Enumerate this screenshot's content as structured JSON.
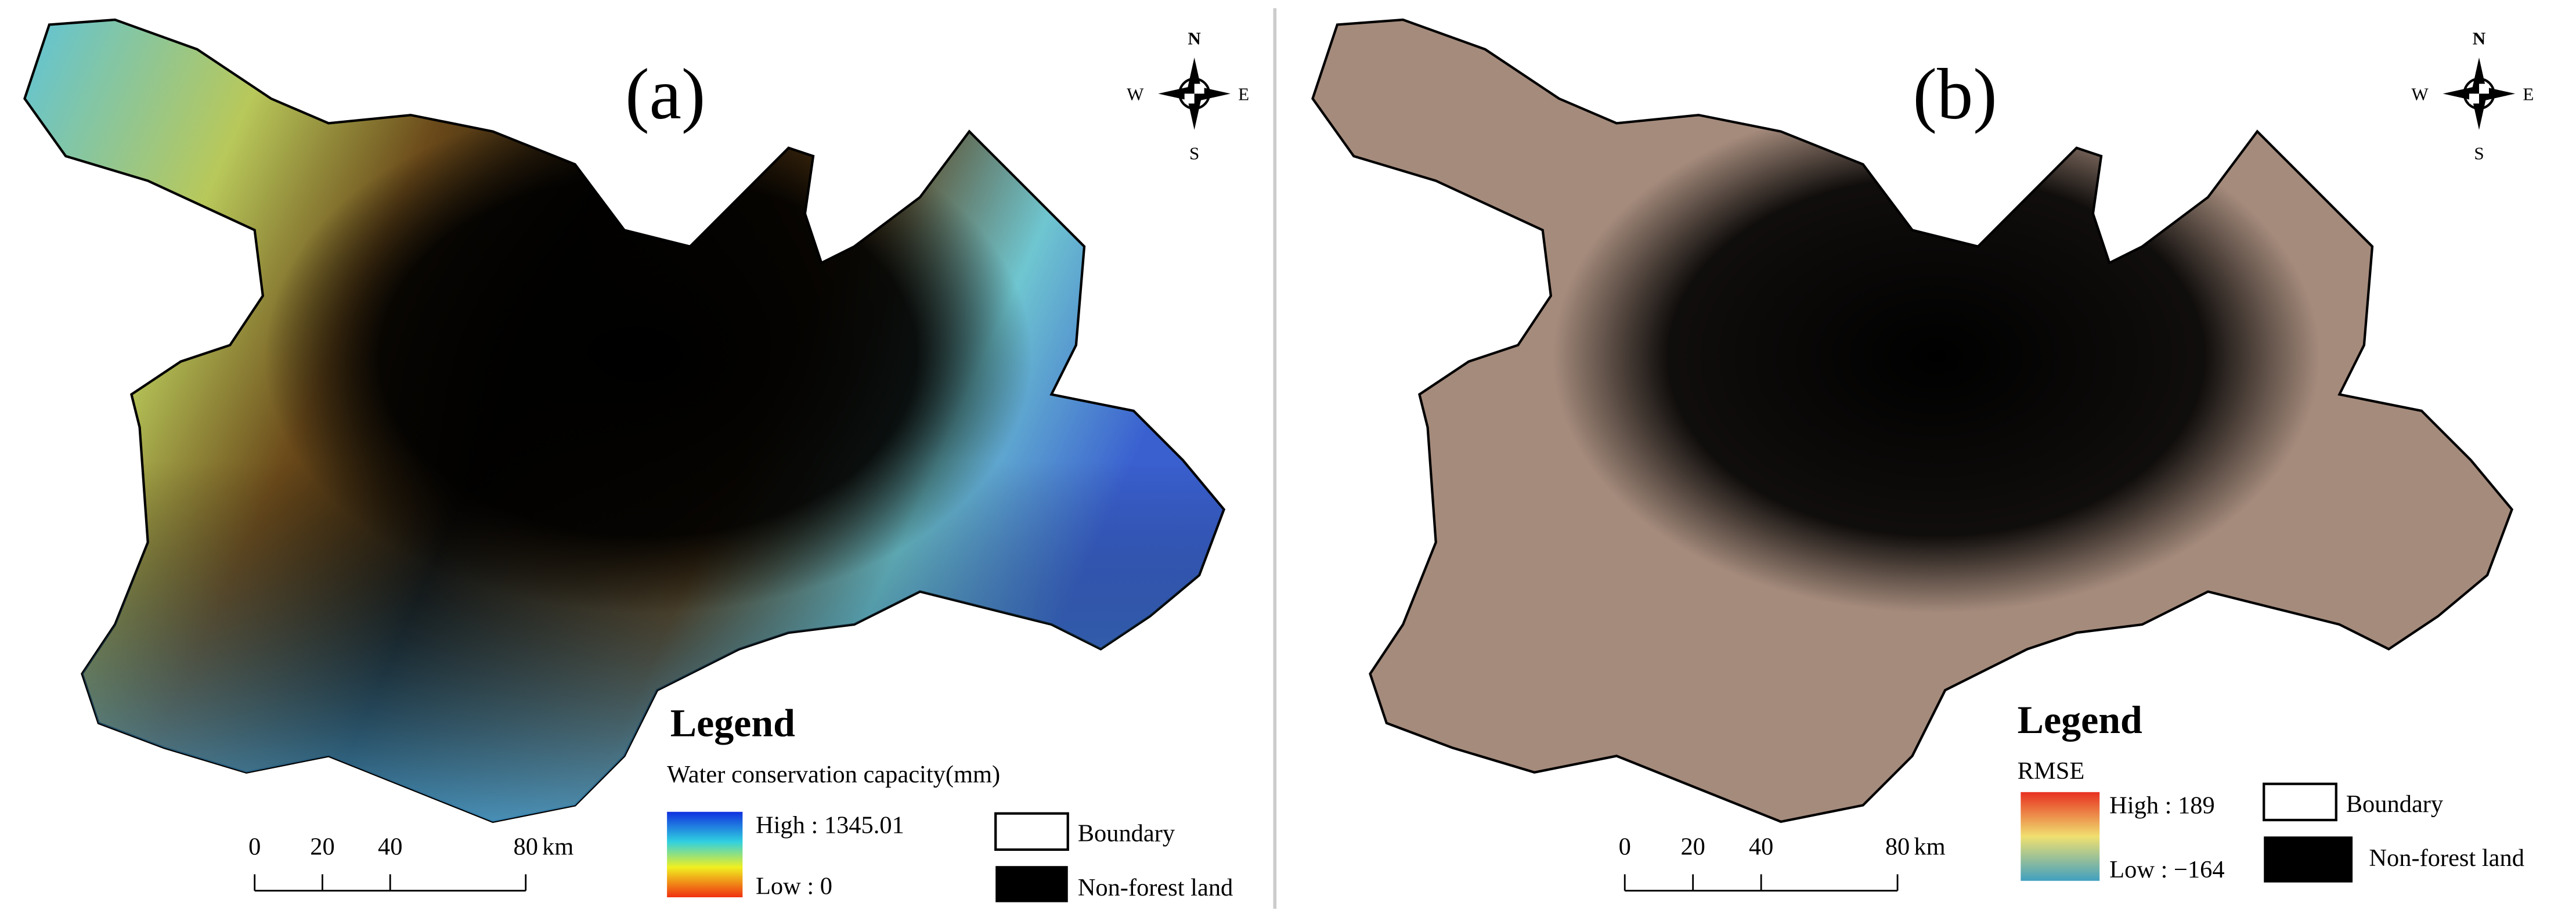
{
  "panels": [
    {
      "label": "(a)",
      "compass": {
        "n": "N",
        "s": "S",
        "w": "W",
        "e": "E"
      },
      "legend": {
        "title": "Legend",
        "subtitle": "Water conservation capacity(mm)",
        "high": "High : 1345.01",
        "low": "Low : 0",
        "boundary": "Boundary",
        "nonforest": "Non-forest land"
      },
      "scale": {
        "ticks": [
          0,
          20,
          40,
          80
        ],
        "unit": "km"
      }
    },
    {
      "label": "(b)",
      "compass": {
        "n": "N",
        "s": "S",
        "w": "W",
        "e": "E"
      },
      "legend": {
        "title": "Legend",
        "subtitle": "RMSE",
        "high": "High : 189",
        "low": "Low : −164",
        "boundary": "Boundary",
        "nonforest": "Non-forest land"
      },
      "scale": {
        "ticks": [
          0,
          20,
          40,
          80
        ],
        "unit": "km"
      }
    }
  ]
}
